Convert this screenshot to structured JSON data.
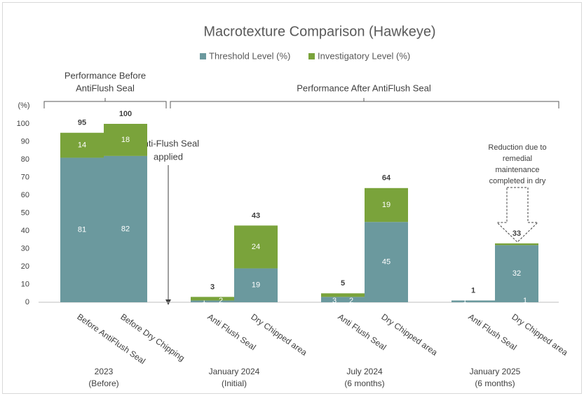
{
  "chart_data": {
    "type": "stacked_bar",
    "title": "Macrotexture Comparison (Hawkeye)",
    "y_label": "(%)",
    "categories": [
      "Before AntiFlush Seal",
      "Before Dry Chipping",
      "Anti Flush Seal",
      "Dry Chipped area",
      "Anti Flush Seal",
      "Dry Chipped area",
      "Anti Flush Seal",
      "Dry Chipped area"
    ],
    "groups": [
      [
        "2023",
        "(Before)"
      ],
      [
        "January 2024",
        "(Initial)"
      ],
      [
        "July 2024",
        "(6 months)"
      ],
      [
        "January 2025",
        "(6 months)"
      ]
    ],
    "series": [
      {
        "name": "Threshold Level (%)",
        "color": "#6b999e",
        "values": [
          81,
          82,
          1,
          19,
          3,
          45,
          1,
          32
        ]
      },
      {
        "name": "Investigatory Level (%)",
        "color": "#7aa33b",
        "values": [
          14,
          18,
          2,
          24,
          2,
          19,
          null,
          1
        ]
      }
    ],
    "totals": [
      95,
      100,
      3,
      43,
      5,
      64,
      1,
      33
    ],
    "ylim": [
      0,
      110
    ],
    "yticks": [
      0,
      10,
      20,
      30,
      40,
      50,
      60,
      70,
      80,
      90,
      100
    ],
    "annotations": {
      "before": [
        "Performance Before",
        "AntiFlush Seal"
      ],
      "after": [
        "Performance After AntiFlush Seal"
      ],
      "applied": [
        "Anti-Flush Seal",
        "applied"
      ],
      "reduction": [
        "Reduction due to",
        "remedial",
        "maintenance",
        "completed in dry"
      ]
    },
    "legend": "top"
  }
}
